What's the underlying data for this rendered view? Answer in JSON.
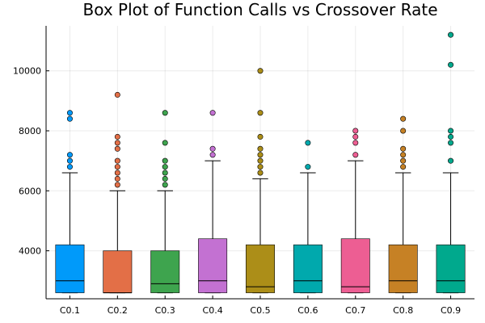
{
  "chart_data": {
    "type": "box",
    "title": "Box Plot of Function Calls vs Crossover Rate",
    "xlabel": "",
    "ylabel": "",
    "ylim": [
      2400,
      11500
    ],
    "yticks": [
      4000,
      6000,
      8000,
      10000
    ],
    "grid": true,
    "legend": "none",
    "series": [
      {
        "category": "C0.1",
        "color": "#009AFA",
        "min": 2600,
        "q1": 2600,
        "median": 3000,
        "q3": 4200,
        "max": 6600,
        "outliers": [
          6800,
          7000,
          7200,
          8400,
          8600
        ]
      },
      {
        "category": "C0.2",
        "color": "#E36F47",
        "min": 2600,
        "q1": 2600,
        "median": 2600,
        "q3": 4000,
        "max": 6000,
        "outliers": [
          6200,
          6400,
          6600,
          6800,
          7000,
          7400,
          7600,
          7800,
          9200
        ]
      },
      {
        "category": "C0.3",
        "color": "#3EA44E",
        "min": 2600,
        "q1": 2600,
        "median": 2900,
        "q3": 4000,
        "max": 6000,
        "outliers": [
          6200,
          6400,
          6600,
          6800,
          7000,
          7600,
          8600
        ]
      },
      {
        "category": "C0.4",
        "color": "#C371D2",
        "min": 2600,
        "q1": 2600,
        "median": 3000,
        "q3": 4400,
        "max": 7000,
        "outliers": [
          7200,
          7400,
          8600
        ]
      },
      {
        "category": "C0.5",
        "color": "#AC8E18",
        "min": 2600,
        "q1": 2600,
        "median": 2800,
        "q3": 4200,
        "max": 6400,
        "outliers": [
          6600,
          6800,
          7000,
          7200,
          7400,
          7800,
          8600,
          10000
        ]
      },
      {
        "category": "C0.6",
        "color": "#00A9AD",
        "min": 2600,
        "q1": 2600,
        "median": 3000,
        "q3": 4200,
        "max": 6600,
        "outliers": [
          6800,
          7600
        ]
      },
      {
        "category": "C0.7",
        "color": "#ED5E93",
        "min": 2600,
        "q1": 2600,
        "median": 2800,
        "q3": 4400,
        "max": 7000,
        "outliers": [
          7200,
          7600,
          7800,
          8000
        ]
      },
      {
        "category": "C0.8",
        "color": "#C68125",
        "min": 2600,
        "q1": 2600,
        "median": 3000,
        "q3": 4200,
        "max": 6600,
        "outliers": [
          6800,
          7000,
          7200,
          7400,
          8000,
          8400
        ]
      },
      {
        "category": "C0.9",
        "color": "#00A98D",
        "min": 2600,
        "q1": 2600,
        "median": 3000,
        "q3": 4200,
        "max": 6600,
        "outliers": [
          7000,
          7600,
          7800,
          8000,
          10200,
          11200
        ]
      }
    ]
  }
}
